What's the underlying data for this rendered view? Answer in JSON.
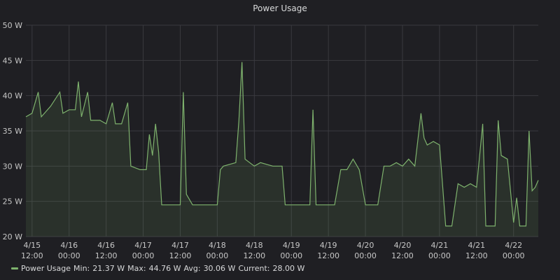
{
  "chart_data": {
    "type": "area",
    "title": "Power Usage",
    "xlabel": "",
    "ylabel": "",
    "y_unit": "W",
    "ylim": [
      20,
      50
    ],
    "y_ticks": [
      20,
      25,
      30,
      35,
      40,
      45,
      50
    ],
    "y_tick_labels": [
      "20 W",
      "25 W",
      "30 W",
      "35 W",
      "40 W",
      "45 W",
      "50 W"
    ],
    "x_ticks": [
      {
        "t": "2021-04-15T12:00",
        "line1": "4/15",
        "line2": "12:00"
      },
      {
        "t": "2021-04-16T00:00",
        "line1": "4/16",
        "line2": "00:00"
      },
      {
        "t": "2021-04-16T12:00",
        "line1": "4/16",
        "line2": "12:00"
      },
      {
        "t": "2021-04-17T00:00",
        "line1": "4/17",
        "line2": "00:00"
      },
      {
        "t": "2021-04-17T12:00",
        "line1": "4/17",
        "line2": "12:00"
      },
      {
        "t": "2021-04-18T00:00",
        "line1": "4/18",
        "line2": "00:00"
      },
      {
        "t": "2021-04-18T12:00",
        "line1": "4/18",
        "line2": "12:00"
      },
      {
        "t": "2021-04-19T00:00",
        "line1": "4/19",
        "line2": "00:00"
      },
      {
        "t": "2021-04-19T12:00",
        "line1": "4/19",
        "line2": "12:00"
      },
      {
        "t": "2021-04-20T00:00",
        "line1": "4/20",
        "line2": "00:00"
      },
      {
        "t": "2021-04-20T12:00",
        "line1": "4/20",
        "line2": "12:00"
      },
      {
        "t": "2021-04-21T00:00",
        "line1": "4/21",
        "line2": "00:00"
      },
      {
        "t": "2021-04-21T12:00",
        "line1": "4/21",
        "line2": "12:00"
      },
      {
        "t": "2021-04-22T00:00",
        "line1": "4/22",
        "line2": "00:00"
      }
    ],
    "xlim": [
      "2021-04-15T10:00",
      "2021-04-22T08:00"
    ],
    "grid": true,
    "legend_position": "bottom-left",
    "series": [
      {
        "name": "Power Usage",
        "color": "#7eb26d",
        "points": [
          [
            "2021-04-15T10:00",
            37
          ],
          [
            "2021-04-15T12:00",
            37.5
          ],
          [
            "2021-04-15T14:00",
            40.5
          ],
          [
            "2021-04-15T15:00",
            37
          ],
          [
            "2021-04-15T18:00",
            38.5
          ],
          [
            "2021-04-15T21:00",
            40.5
          ],
          [
            "2021-04-15T22:00",
            37.5
          ],
          [
            "2021-04-16T00:00",
            38
          ],
          [
            "2021-04-16T02:00",
            38
          ],
          [
            "2021-04-16T03:00",
            42
          ],
          [
            "2021-04-16T04:00",
            37
          ],
          [
            "2021-04-16T06:00",
            40.5
          ],
          [
            "2021-04-16T07:00",
            36.5
          ],
          [
            "2021-04-16T10:00",
            36.5
          ],
          [
            "2021-04-16T12:00",
            36
          ],
          [
            "2021-04-16T14:00",
            39
          ],
          [
            "2021-04-16T15:00",
            36
          ],
          [
            "2021-04-16T17:00",
            36
          ],
          [
            "2021-04-16T19:00",
            39
          ],
          [
            "2021-04-16T20:00",
            30
          ],
          [
            "2021-04-16T23:00",
            29.5
          ],
          [
            "2021-04-17T01:00",
            29.5
          ],
          [
            "2021-04-17T02:00",
            34.5
          ],
          [
            "2021-04-17T03:00",
            31.5
          ],
          [
            "2021-04-17T04:00",
            36
          ],
          [
            "2021-04-17T05:00",
            32
          ],
          [
            "2021-04-17T06:00",
            24.5
          ],
          [
            "2021-04-17T08:00",
            24.5
          ],
          [
            "2021-04-17T10:00",
            24.5
          ],
          [
            "2021-04-17T12:00",
            24.5
          ],
          [
            "2021-04-17T13:00",
            40.5
          ],
          [
            "2021-04-17T14:00",
            26
          ],
          [
            "2021-04-17T16:00",
            24.5
          ],
          [
            "2021-04-17T20:00",
            24.5
          ],
          [
            "2021-04-17T22:00",
            24.5
          ],
          [
            "2021-04-18T00:00",
            24.5
          ],
          [
            "2021-04-18T01:00",
            29.5
          ],
          [
            "2021-04-18T02:00",
            30
          ],
          [
            "2021-04-18T06:00",
            30.5
          ],
          [
            "2021-04-18T07:00",
            36.5
          ],
          [
            "2021-04-18T08:00",
            44.76
          ],
          [
            "2021-04-18T09:00",
            31
          ],
          [
            "2021-04-18T12:00",
            30
          ],
          [
            "2021-04-18T14:00",
            30.5
          ],
          [
            "2021-04-18T18:00",
            30
          ],
          [
            "2021-04-18T21:00",
            30
          ],
          [
            "2021-04-18T22:00",
            24.5
          ],
          [
            "2021-04-19T00:00",
            24.5
          ],
          [
            "2021-04-19T04:00",
            24.5
          ],
          [
            "2021-04-19T06:00",
            24.5
          ],
          [
            "2021-04-19T07:00",
            38
          ],
          [
            "2021-04-19T08:00",
            24.5
          ],
          [
            "2021-04-19T12:00",
            24.5
          ],
          [
            "2021-04-19T14:00",
            24.5
          ],
          [
            "2021-04-19T16:00",
            29.5
          ],
          [
            "2021-04-19T18:00",
            29.5
          ],
          [
            "2021-04-19T20:00",
            31
          ],
          [
            "2021-04-19T22:00",
            29.5
          ],
          [
            "2021-04-20T00:00",
            24.5
          ],
          [
            "2021-04-20T04:00",
            24.5
          ],
          [
            "2021-04-20T06:00",
            30
          ],
          [
            "2021-04-20T08:00",
            30
          ],
          [
            "2021-04-20T10:00",
            30.5
          ],
          [
            "2021-04-20T12:00",
            30
          ],
          [
            "2021-04-20T14:00",
            31
          ],
          [
            "2021-04-20T16:00",
            30
          ],
          [
            "2021-04-20T18:00",
            37.5
          ],
          [
            "2021-04-20T19:00",
            34
          ],
          [
            "2021-04-20T20:00",
            33
          ],
          [
            "2021-04-20T22:00",
            33.5
          ],
          [
            "2021-04-21T00:00",
            33
          ],
          [
            "2021-04-21T02:00",
            21.5
          ],
          [
            "2021-04-21T04:00",
            21.5
          ],
          [
            "2021-04-21T06:00",
            27.5
          ],
          [
            "2021-04-21T08:00",
            27
          ],
          [
            "2021-04-21T10:00",
            27.5
          ],
          [
            "2021-04-21T12:00",
            27
          ],
          [
            "2021-04-21T14:00",
            36
          ],
          [
            "2021-04-21T15:00",
            21.5
          ],
          [
            "2021-04-21T18:00",
            21.5
          ],
          [
            "2021-04-21T19:00",
            36.5
          ],
          [
            "2021-04-21T20:00",
            31.5
          ],
          [
            "2021-04-21T22:00",
            31
          ],
          [
            "2021-04-22T00:00",
            22
          ],
          [
            "2021-04-22T01:00",
            25.5
          ],
          [
            "2021-04-22T02:00",
            21.5
          ],
          [
            "2021-04-22T04:00",
            21.5
          ],
          [
            "2021-04-22T05:00",
            35
          ],
          [
            "2021-04-22T06:00",
            26.5
          ],
          [
            "2021-04-22T07:00",
            27
          ],
          [
            "2021-04-22T08:00",
            28
          ]
        ]
      }
    ]
  },
  "legend": {
    "name": "Power Usage",
    "min_label": "Min:",
    "min_value": "21.37 W",
    "max_label": "Max:",
    "max_value": "44.76 W",
    "avg_label": "Avg:",
    "avg_value": "30.06 W",
    "current_label": "Current:",
    "current_value": "28.00 W",
    "color": "#7eb26d"
  }
}
